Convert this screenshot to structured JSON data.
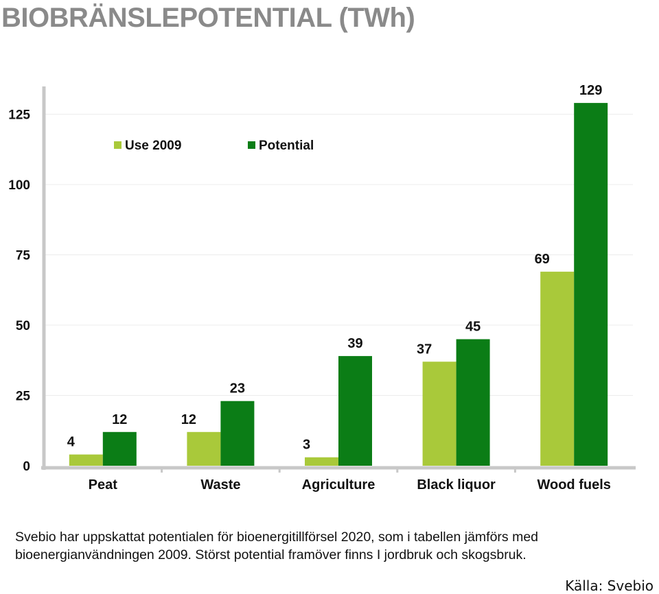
{
  "title": "BIOBRÄNSLEPOTENTIAL (TWh)",
  "caption": "Svebio har uppskattat potentialen för bioenergitillförsel 2020, som i tabellen jämförs med bioenergianvändningen 2009. Störst potential framöver finns I jordbruk och skogsbruk.",
  "source": "Källa: Svebio",
  "chart_data": {
    "type": "bar",
    "categories": [
      "Peat",
      "Waste",
      "Agriculture",
      "Black liquor",
      "Wood fuels"
    ],
    "series": [
      {
        "name": "Use 2009",
        "values": [
          4,
          12,
          3,
          37,
          69
        ],
        "color": "#a9c93a"
      },
      {
        "name": "Potential",
        "values": [
          12,
          23,
          39,
          45,
          129
        ],
        "color": "#0b7d16"
      }
    ],
    "yticks": [
      0,
      25,
      50,
      75,
      100,
      125
    ],
    "ylim": [
      0,
      129
    ],
    "grid": true,
    "legend": "top-left"
  }
}
